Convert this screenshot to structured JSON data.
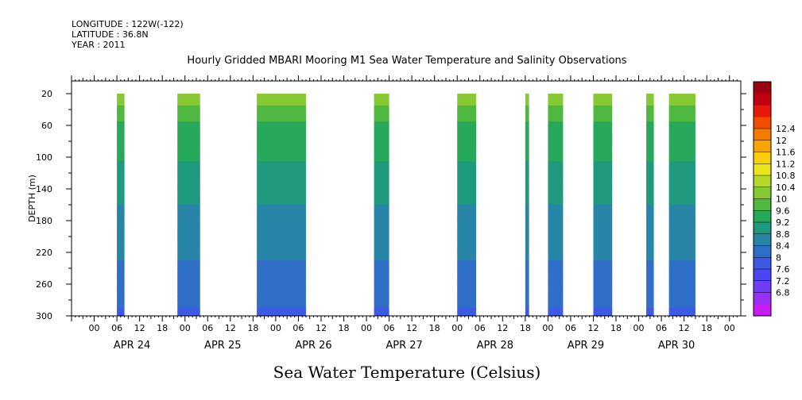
{
  "header": {
    "longitude": "LONGITUDE : 122W(-122)",
    "latitude": "LATITUDE : 36.8N",
    "year": "YEAR : 2011"
  },
  "chart_data": {
    "type": "heatmap",
    "title": "Hourly Gridded MBARI Mooring M1 Sea Water Temperature and Salinity Observations",
    "xlabel": "Sea Water Temperature (Celsius)",
    "ylabel": "DEPTH (m)",
    "x_unit": "hours from APR 24 00:00",
    "xlim": [
      -6,
      171
    ],
    "ylim": [
      300,
      4
    ],
    "y_ticks": [
      20,
      60,
      100,
      140,
      180,
      220,
      260,
      300
    ],
    "x_hour_labels": [
      "00",
      "06",
      "12",
      "18",
      "00",
      "06",
      "12",
      "18",
      "00",
      "06",
      "12",
      "18",
      "00",
      "06",
      "12",
      "18",
      "00",
      "06",
      "12",
      "18",
      "00",
      "06",
      "12",
      "18",
      "00",
      "06",
      "12",
      "18",
      "00"
    ],
    "date_labels": [
      "APR 24",
      "APR 25",
      "APR 26",
      "APR 27",
      "APR 28",
      "APR 29",
      "APR 30"
    ],
    "colorbar": {
      "levels": [
        "6.8",
        "7.2",
        "7.6",
        "8",
        "8.4",
        "8.8",
        "9.2",
        "9.6",
        "10",
        "10.4",
        "10.8",
        "11.2",
        "11.6",
        "12",
        "12.4"
      ],
      "colors": [
        "#c61df2",
        "#9a30f5",
        "#6e3df8",
        "#4a47f2",
        "#3c5ae6",
        "#2f6fc8",
        "#2786a8",
        "#1f9a7e",
        "#28a85a",
        "#4fb840",
        "#86c935",
        "#b4d928",
        "#e6e61a",
        "#f9cf0d",
        "#f7a600",
        "#f57c00",
        "#f24c00",
        "#e31a0a",
        "#c00010",
        "#990012"
      ]
    },
    "data_segments": [
      {
        "start": 6,
        "end": 8
      },
      {
        "start": 22,
        "end": 28
      },
      {
        "start": 43,
        "end": 56
      },
      {
        "start": 74,
        "end": 78
      },
      {
        "start": 96,
        "end": 101
      },
      {
        "start": 114,
        "end": 115
      },
      {
        "start": 120,
        "end": 124
      },
      {
        "start": 132,
        "end": 137
      },
      {
        "start": 146,
        "end": 148
      },
      {
        "start": 152,
        "end": 159
      }
    ],
    "depth_profile": [
      {
        "depth": 20,
        "value": 10.0
      },
      {
        "depth": 40,
        "value": 9.4
      },
      {
        "depth": 60,
        "value": 9.1
      },
      {
        "depth": 90,
        "value": 8.95
      },
      {
        "depth": 120,
        "value": 8.6
      },
      {
        "depth": 160,
        "value": 8.4
      },
      {
        "depth": 190,
        "value": 8.2
      },
      {
        "depth": 230,
        "value": 8.0
      },
      {
        "depth": 270,
        "value": 7.7
      },
      {
        "depth": 300,
        "value": 7.55
      }
    ]
  }
}
